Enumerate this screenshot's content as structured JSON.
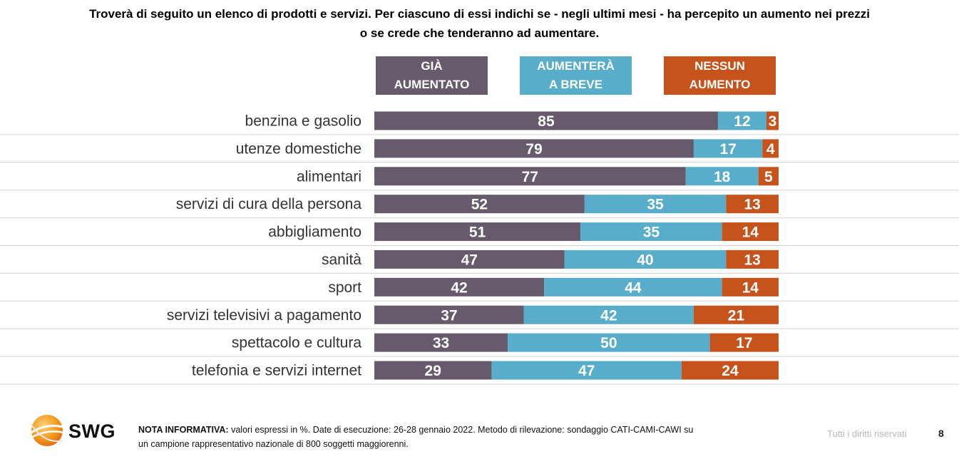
{
  "title_line1": "Troverà di seguito un elenco di prodotti e servizi. Per ciascuno di essi indichi se - negli ultimi mesi - ha percepito un aumento nei prezzi",
  "title_line2": "o se crede che tenderanno ad aumentare.",
  "colors": {
    "gia": "#665a6c",
    "aumentera": "#58adcb",
    "nessun": "#c6521c",
    "rule": "#d0d0d0"
  },
  "legend": [
    {
      "line1": "GIÀ",
      "line2": "AUMENTATO"
    },
    {
      "line1": "AUMENTERÀ",
      "line2": "A BREVE"
    },
    {
      "line1": "NESSUN",
      "line2": "AUMENTO"
    }
  ],
  "chart_data": {
    "type": "bar",
    "stacked": true,
    "orientation": "horizontal",
    "categories": [
      "benzina e gasolio",
      "utenze domestiche",
      "alimentari",
      "servizi di cura della persona",
      "abbigliamento",
      "sanità",
      "sport",
      "servizi televisivi a pagamento",
      "spettacolo e cultura",
      "telefonia e servizi internet"
    ],
    "series": [
      {
        "name": "GIÀ AUMENTATO",
        "color": "#665a6c",
        "values": [
          85,
          79,
          77,
          52,
          51,
          47,
          42,
          37,
          33,
          29
        ]
      },
      {
        "name": "AUMENTERÀ A BREVE",
        "color": "#58adcb",
        "values": [
          12,
          17,
          18,
          35,
          35,
          40,
          44,
          42,
          50,
          47
        ]
      },
      {
        "name": "NESSUN AUMENTO",
        "color": "#c6521c",
        "values": [
          3,
          4,
          5,
          13,
          14,
          13,
          14,
          21,
          17,
          24
        ]
      }
    ],
    "xlim": [
      0,
      100
    ],
    "legend_position": "top",
    "grid": false
  },
  "logo_text": "SWG",
  "note_label": "NOTA INFORMATIVA:",
  "note_line1": "valori espressi in %. Date di esecuzione: 26-28 gennaio 2022. Metodo di rilevazione: sondaggio CATI-CAMI-CAWI su",
  "note_line2": "un campione rappresentativo nazionale di 800 soggetti maggiorenni.",
  "rights": "Tutti i diritti riservati",
  "page_number": "8"
}
